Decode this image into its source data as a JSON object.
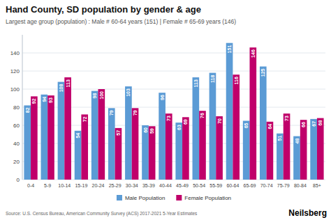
{
  "chart_data": {
    "type": "bar",
    "title": "Hand County, SD population by gender & age",
    "subtitle": "Largest age group (population) : Male # 60-64 years (151) | Female # 65-69 years (146)",
    "categories": [
      "0-4",
      "5-9",
      "10-14",
      "15-19",
      "20-24",
      "25-29",
      "30-34",
      "35-39",
      "40-44",
      "45-49",
      "50-54",
      "55-59",
      "60-64",
      "65-69",
      "70-74",
      "75-79",
      "80-84",
      "85+"
    ],
    "series": [
      {
        "name": "Male Population",
        "color": "#5b9bd5",
        "values": [
          82,
          94,
          108,
          54,
          98,
          79,
          103,
          60,
          96,
          63,
          113,
          118,
          151,
          65,
          125,
          51,
          48,
          67
        ]
      },
      {
        "name": "Female Population",
        "color": "#c0006a",
        "values": [
          92,
          93,
          113,
          72,
          100,
          57,
          79,
          59,
          73,
          69,
          76,
          70,
          116,
          146,
          64,
          73,
          66,
          68
        ]
      }
    ],
    "ylim": [
      0,
      160
    ],
    "yticks": [
      0,
      20,
      40,
      60,
      80,
      100,
      120,
      140
    ],
    "grid": true,
    "legend": "bottom",
    "data_labels": true,
    "annotations": [
      "Source: U.S. Census Bureau, American Community Survey (ACS) 2017-2021 5-Year Estimates",
      "Neilsberg"
    ]
  }
}
